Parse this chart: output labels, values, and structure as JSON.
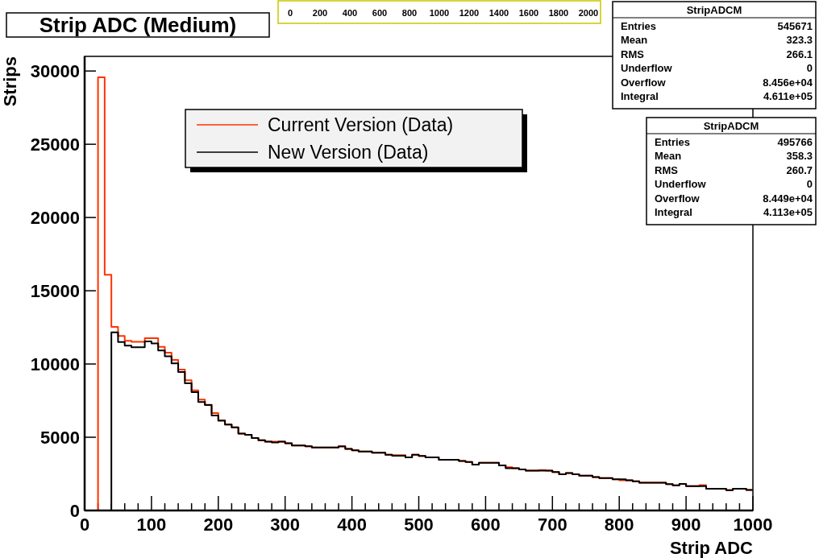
{
  "chart_data": {
    "type": "histogram",
    "title": "Strip ADC (Medium)",
    "xlabel": "Strip ADC",
    "ylabel": "Strips",
    "bins": [
      0,
      10,
      20,
      30,
      40,
      50,
      60,
      70,
      80,
      90,
      100,
      110,
      120,
      130,
      140,
      150,
      160,
      170,
      180,
      190,
      200,
      210,
      220,
      230,
      240,
      250,
      260,
      270,
      280,
      290,
      300,
      310,
      320,
      330,
      340,
      350,
      360,
      370,
      380,
      390,
      400,
      410,
      420,
      430,
      440,
      450,
      460,
      470,
      480,
      490,
      500,
      510,
      520,
      530,
      540,
      550,
      560,
      570,
      580,
      590,
      600,
      610,
      620,
      630,
      640,
      650,
      660,
      670,
      680,
      690,
      700,
      710,
      720,
      730,
      740,
      750,
      760,
      770,
      780,
      790,
      800,
      810,
      820,
      830,
      840,
      850,
      860,
      870,
      880,
      890,
      900,
      910,
      920,
      930,
      940,
      950,
      960,
      970,
      980,
      990,
      1000
    ],
    "series": [
      {
        "name": "Current Version (Data)",
        "color": "#ff3300",
        "values": [
          0,
          0,
          29570,
          16090,
          12530,
          11920,
          11590,
          11520,
          11520,
          11760,
          11760,
          11170,
          10770,
          10280,
          9620,
          8890,
          8210,
          7570,
          7220,
          6650,
          6160,
          5870,
          5670,
          5250,
          5160,
          4940,
          4790,
          4700,
          4700,
          4700,
          4590,
          4440,
          4440,
          4390,
          4300,
          4300,
          4300,
          4300,
          4400,
          4210,
          4110,
          4020,
          4020,
          3950,
          3950,
          3800,
          3780,
          3780,
          3630,
          3810,
          3720,
          3630,
          3630,
          3460,
          3460,
          3460,
          3380,
          3310,
          3130,
          3250,
          3250,
          3250,
          3080,
          2950,
          2890,
          2810,
          2720,
          2720,
          2760,
          2720,
          2620,
          2470,
          2560,
          2470,
          2380,
          2380,
          2280,
          2210,
          2210,
          2130,
          2060,
          2060,
          1990,
          1890,
          1890,
          1890,
          1890,
          1800,
          1720,
          1820,
          1660,
          1660,
          1730,
          1490,
          1490,
          1490,
          1390,
          1490,
          1490,
          1400
        ]
      },
      {
        "name": "New Version (Data)",
        "color": "#000000",
        "values": [
          0,
          0,
          0,
          0,
          12160,
          11500,
          11250,
          11150,
          11150,
          11540,
          11410,
          10920,
          10520,
          10040,
          9450,
          8680,
          8080,
          7410,
          7200,
          6490,
          6130,
          5870,
          5670,
          5250,
          5160,
          4940,
          4790,
          4700,
          4650,
          4700,
          4590,
          4440,
          4440,
          4390,
          4300,
          4300,
          4300,
          4300,
          4370,
          4210,
          4110,
          4020,
          4020,
          3950,
          3950,
          3800,
          3740,
          3740,
          3630,
          3810,
          3720,
          3630,
          3630,
          3460,
          3460,
          3460,
          3380,
          3310,
          3130,
          3250,
          3250,
          3250,
          3080,
          2890,
          2890,
          2810,
          2720,
          2720,
          2720,
          2720,
          2620,
          2470,
          2560,
          2470,
          2380,
          2380,
          2280,
          2210,
          2210,
          2130,
          2130,
          2060,
          1990,
          1890,
          1890,
          1890,
          1890,
          1800,
          1720,
          1820,
          1660,
          1660,
          1660,
          1490,
          1490,
          1490,
          1390,
          1490,
          1490,
          1400
        ]
      }
    ],
    "xlim": [
      0,
      1000
    ],
    "ylim": [
      0,
      31000
    ],
    "xticks": [
      0,
      {
        "value": 20,
        "label": null
      },
      {
        "value": 40,
        "label": null
      },
      {
        "value": 60,
        "label": null
      },
      {
        "value": 80,
        "label": null
      },
      100,
      {
        "value": 120,
        "label": null
      },
      {
        "value": 140,
        "label": null
      },
      {
        "value": 160,
        "label": null
      },
      {
        "value": 180,
        "label": null
      },
      200,
      {
        "value": 220,
        "label": null
      },
      {
        "value": 240,
        "label": null
      },
      {
        "value": 260,
        "label": null
      },
      {
        "value": 280,
        "label": null
      },
      300,
      {
        "value": 320,
        "label": null
      },
      {
        "value": 340,
        "label": null
      },
      {
        "value": 360,
        "label": null
      },
      {
        "value": 380,
        "label": null
      },
      400,
      {
        "value": 420,
        "label": null
      },
      {
        "value": 440,
        "label": null
      },
      {
        "value": 460,
        "label": null
      },
      {
        "value": 480,
        "label": null
      },
      500,
      {
        "value": 520,
        "label": null
      },
      {
        "value": 540,
        "label": null
      },
      {
        "value": 560,
        "label": null
      },
      {
        "value": 580,
        "label": null
      },
      600,
      {
        "value": 620,
        "label": null
      },
      {
        "value": 640,
        "label": null
      },
      {
        "value": 660,
        "label": null
      },
      {
        "value": 680,
        "label": null
      },
      700,
      {
        "value": 720,
        "label": null
      },
      {
        "value": 740,
        "label": null
      },
      {
        "value": 760,
        "label": null
      },
      {
        "value": 780,
        "label": null
      },
      800,
      {
        "value": 820,
        "label": null
      },
      {
        "value": 840,
        "label": null
      },
      {
        "value": 860,
        "label": null
      },
      {
        "value": 880,
        "label": null
      },
      900,
      {
        "value": 920,
        "label": null
      },
      {
        "value": 940,
        "label": null
      },
      {
        "value": 960,
        "label": null
      },
      {
        "value": 980,
        "label": null
      },
      1000
    ],
    "yticks": [
      0,
      5000,
      10000,
      15000,
      20000,
      25000,
      30000
    ],
    "grid": false,
    "legend": "top",
    "annotations": [
      "0 200 400 600 800 1000 1200 1400 1600 1800 2000",
      "StripADCM",
      "Entries 545671",
      "Mean 323.3",
      "RMS 266.1",
      "Underflow 0",
      "Overflow 8.456e+04",
      "Integral 4.611e+05",
      "StripADCM",
      "Entries 495766",
      "Mean 358.3",
      "RMS 260.7",
      "Underflow 0",
      "Overflow 8.449e+04",
      "Integral 4.113e+05"
    ]
  }
}
